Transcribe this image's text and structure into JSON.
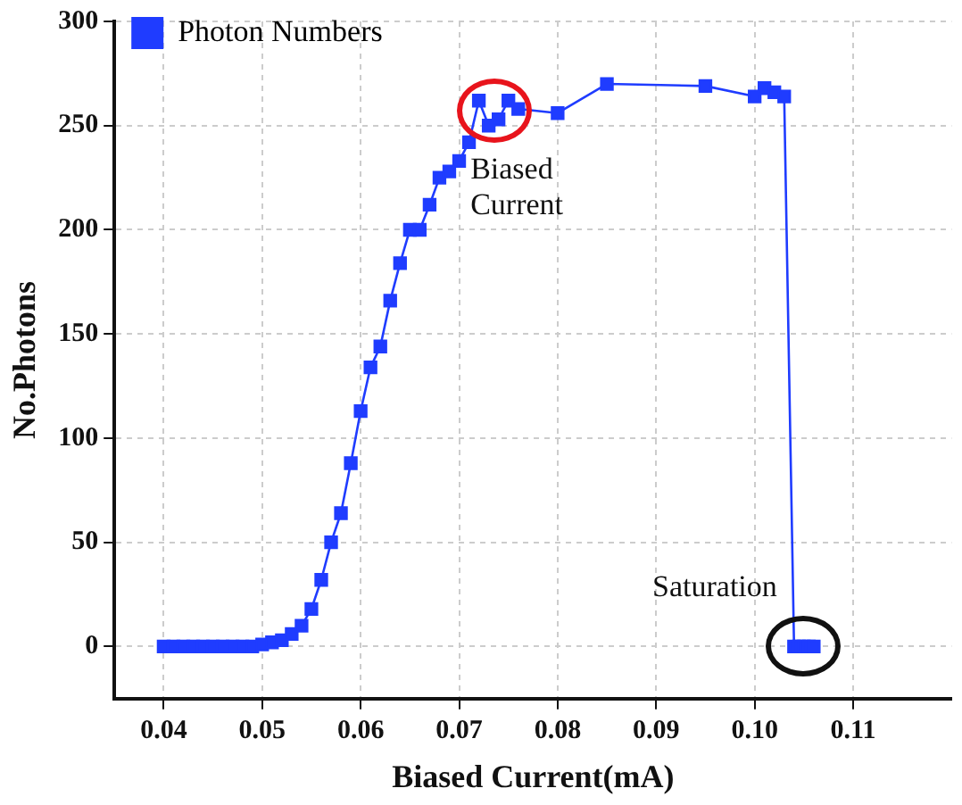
{
  "chart_data": {
    "type": "line",
    "xlabel": "Biased Current(mA)",
    "ylabel": "No.Photons",
    "x": [
      0.04,
      0.041,
      0.042,
      0.043,
      0.044,
      0.045,
      0.046,
      0.047,
      0.048,
      0.049,
      0.05,
      0.051,
      0.052,
      0.053,
      0.054,
      0.055,
      0.056,
      0.057,
      0.058,
      0.059,
      0.06,
      0.061,
      0.062,
      0.063,
      0.064,
      0.065,
      0.066,
      0.067,
      0.068,
      0.069,
      0.07,
      0.071,
      0.072,
      0.073,
      0.074,
      0.075,
      0.076,
      0.08,
      0.085,
      0.095,
      0.1,
      0.101,
      0.102,
      0.103,
      0.104,
      0.1045,
      0.105,
      0.1055,
      0.106
    ],
    "series": [
      {
        "name": "Photon Numbers",
        "color": "#1f3cff",
        "values": [
          0,
          0,
          0,
          0,
          0,
          0,
          0,
          0,
          0,
          0,
          1,
          2,
          3,
          6,
          10,
          18,
          32,
          50,
          64,
          88,
          113,
          134,
          144,
          166,
          184,
          200,
          200,
          212,
          225,
          228,
          233,
          242,
          262,
          250,
          253,
          262,
          258,
          256,
          270,
          269,
          264,
          268,
          266,
          264,
          0,
          0,
          0,
          0,
          0
        ]
      }
    ],
    "xlim": [
      0.035,
      0.12
    ],
    "xticks": [
      0.04,
      0.05,
      0.06,
      0.07,
      0.08,
      0.09,
      {
        "value": 0.1,
        "label": "0.10"
      },
      0.11
    ],
    "ylim": [
      -25,
      300
    ],
    "yticks": [
      0,
      50,
      100,
      150,
      200,
      250,
      300
    ],
    "grid": true,
    "legend": "top left",
    "marker": "square",
    "line_style": "solid",
    "annotations": [
      {
        "text": "Biased Current",
        "x": 0.0735,
        "y": 257
      },
      {
        "text": "Saturation",
        "x": 0.105,
        "y": 0
      }
    ]
  }
}
